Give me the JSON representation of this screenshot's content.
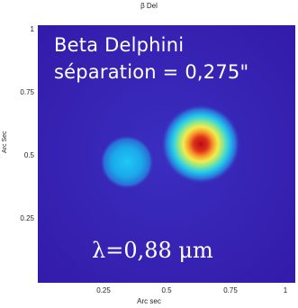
{
  "figure": {
    "title": "β Del",
    "star_name": "Beta Delphini",
    "separation": "séparation = 0,275\"",
    "wavelength": "λ=0,88 μm",
    "x_axis_label": "Arc sec",
    "y_axis_label": "Arc Sec",
    "x_ticks": [
      "0.25",
      "0.5",
      "0.75",
      "1"
    ],
    "y_ticks": [
      "1",
      "0.75",
      "0.5",
      "0.25"
    ],
    "colors": {
      "background": "#3a1fb3",
      "secondary_star": "#19b7f0",
      "primary_core": "#d42020",
      "primary_ring": "#f0e64a"
    }
  }
}
